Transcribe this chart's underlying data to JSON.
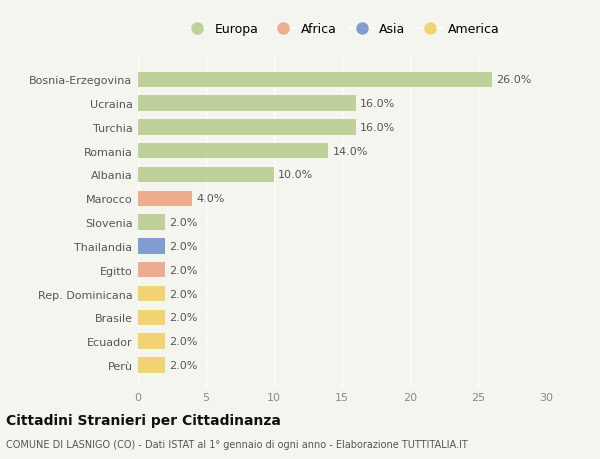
{
  "categories": [
    "Bosnia-Erzegovina",
    "Ucraina",
    "Turchia",
    "Romania",
    "Albania",
    "Marocco",
    "Slovenia",
    "Thailandia",
    "Egitto",
    "Rep. Dominicana",
    "Brasile",
    "Ecuador",
    "Perù"
  ],
  "values": [
    26.0,
    16.0,
    16.0,
    14.0,
    10.0,
    4.0,
    2.0,
    2.0,
    2.0,
    2.0,
    2.0,
    2.0,
    2.0
  ],
  "bar_colors": [
    "#adc47d",
    "#adc47d",
    "#adc47d",
    "#adc47d",
    "#adc47d",
    "#e8956d",
    "#adc47d",
    "#5b7fc4",
    "#e8956d",
    "#f0c84a",
    "#f0c84a",
    "#f0c84a",
    "#f0c84a"
  ],
  "bar_alpha": 0.75,
  "legend": [
    {
      "label": "Europa",
      "color": "#adc47d"
    },
    {
      "label": "Africa",
      "color": "#e8956d"
    },
    {
      "label": "Asia",
      "color": "#5b7fc4"
    },
    {
      "label": "America",
      "color": "#f0c84a"
    }
  ],
  "xlim": [
    0,
    30
  ],
  "xticks": [
    0,
    5,
    10,
    15,
    20,
    25,
    30
  ],
  "title": "Cittadini Stranieri per Cittadinanza",
  "subtitle": "COMUNE DI LASNIGO (CO) - Dati ISTAT al 1° gennaio di ogni anno - Elaborazione TUTTITALIA.IT",
  "background_color": "#f5f5f0",
  "grid_color": "#ffffff",
  "label_fontsize": 8,
  "tick_fontsize": 8
}
